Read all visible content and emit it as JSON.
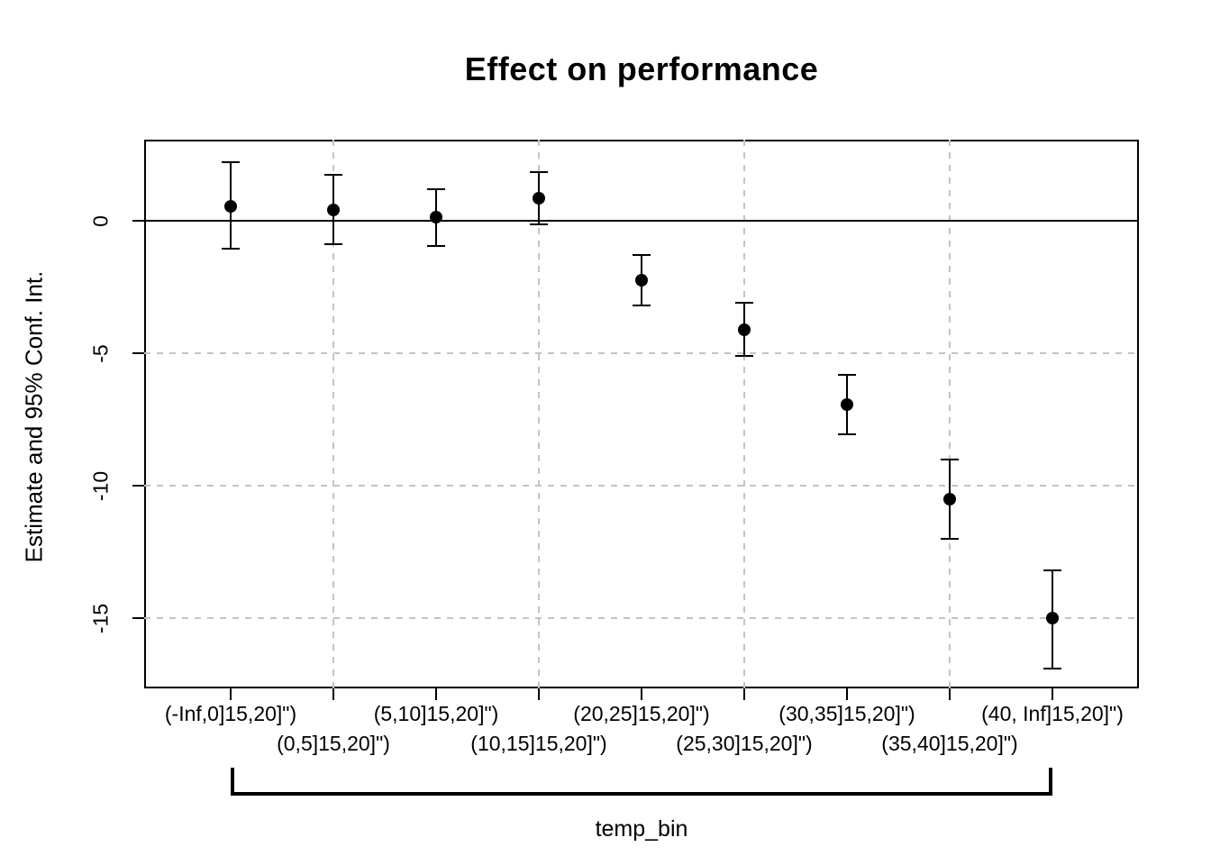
{
  "chart_data": {
    "type": "scatter",
    "title": "Effect on performance",
    "xlabel": "temp_bin",
    "ylabel": "Estimate and 95% Conf. Int.",
    "categories": [
      "(-Inf,0]15,20]\")",
      "(0,5]15,20]\")",
      "(5,10]15,20]\")",
      "(10,15]15,20]\")",
      "(20,25]15,20]\")",
      "(25,30]15,20]\")",
      "(30,35]15,20]\")",
      "(35,40]15,20]\")",
      "(40, Inf]15,20]\")"
    ],
    "series": [
      {
        "name": "estimate",
        "values": [
          0.55,
          0.4,
          0.15,
          0.85,
          -2.25,
          -4.1,
          -6.95,
          -10.5,
          -15.0
        ]
      },
      {
        "name": "ci_lower",
        "values": [
          -1.05,
          -0.9,
          -0.95,
          -0.15,
          -3.2,
          -5.1,
          -8.05,
          -12.0,
          -16.9
        ]
      },
      {
        "name": "ci_upper",
        "values": [
          2.2,
          1.75,
          1.2,
          1.85,
          -1.3,
          -3.1,
          -5.8,
          -9.0,
          -13.2
        ]
      }
    ],
    "ylim": [
      -17.65,
      3.06
    ],
    "yticks": [
      0,
      -5,
      -10,
      -15
    ],
    "ytick_labels": [
      "0",
      "-5",
      "-10",
      "-15"
    ],
    "grid": {
      "h_dashed_at": [
        -5,
        -10,
        -15
      ],
      "v_dashed_at_category_indices": [
        1,
        3,
        5,
        7
      ],
      "solid_hline_at": 0,
      "grid_color": "#c4c4c4"
    },
    "x_label_rows": {
      "row1_indices": [
        0,
        2,
        4,
        6,
        8
      ],
      "row2_indices": [
        1,
        3,
        5,
        7
      ]
    },
    "marker": {
      "shape": "filled-circle",
      "color": "#000000"
    },
    "line_color": "#000000",
    "legend": "none",
    "background": "#ffffff"
  }
}
